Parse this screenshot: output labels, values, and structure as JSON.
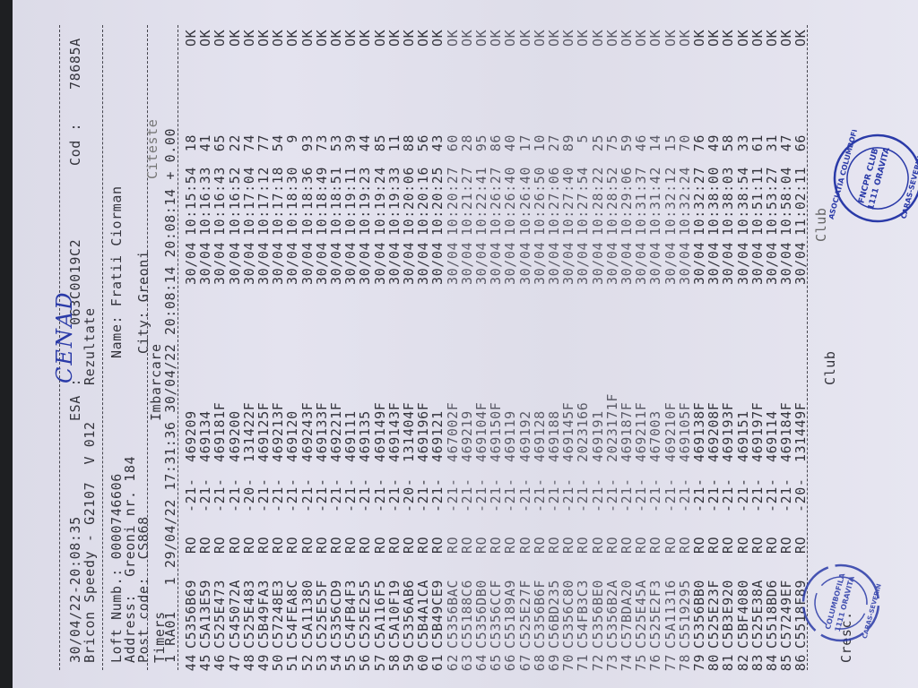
{
  "handwritten_title": "CENAD",
  "header": {
    "datetime": "30/04/22-20:08:35",
    "esa_label": "ESA :",
    "esa_value": "063C0019C2",
    "cod_label": "Cod :",
    "cod_value": "78685A",
    "device": "Bricon Speedy - G2107  V 012",
    "report": "Rezultate"
  },
  "owner": {
    "loft": "Loft Numb.: 0000746606",
    "name": "Name: Fratii Ciorman",
    "address": "Address:  Greoni nr. 184",
    "post_code": "Post code:  CS868",
    "city": "City: Greoni"
  },
  "timers": {
    "label": "Timers",
    "imbarcare_label": "Imbarcare",
    "citeste_label": "Citeste",
    "line": "1 RA01   1 29/04/22 17:31:36 30/04/22 20:08:14 20:08:14 + 0.00"
  },
  "rows": [
    [
      "44",
      "C5356B69",
      "RO",
      "-21-",
      "469209",
      "30/04",
      "10:15:54",
      "18",
      "OK"
    ],
    [
      "45",
      "C5A13E59",
      "RO",
      "-21-",
      "469134",
      "30/04",
      "10:16:33",
      "41",
      "OK"
    ],
    [
      "46",
      "C525E473",
      "RO",
      "-21-",
      "469181F",
      "30/04",
      "10:16:43",
      "65",
      "OK"
    ],
    [
      "47",
      "C545072A",
      "RO",
      "-21-",
      "469200",
      "30/04",
      "10:16:52",
      "22",
      "OK"
    ],
    [
      "48",
      "C525E483",
      "RO",
      "-20-",
      "131422F",
      "30/04",
      "10:17:04",
      "74",
      "OK"
    ],
    [
      "49",
      "C5B49FA3",
      "RO",
      "-21-",
      "469125F",
      "30/04",
      "10:17:12",
      "77",
      "OK"
    ],
    [
      "50",
      "C57248E3",
      "RO",
      "-21-",
      "469213F",
      "30/04",
      "10:17:18",
      "54",
      "OK"
    ],
    [
      "51",
      "C54FEA8C",
      "RO",
      "-21-",
      "469120",
      "30/04",
      "10:18:30",
      "9",
      "OK"
    ],
    [
      "52",
      "C5A11380",
      "RO",
      "-21-",
      "469243F",
      "30/04",
      "10:18:36",
      "93",
      "OK"
    ],
    [
      "53",
      "C525E55F",
      "RO",
      "-21-",
      "469133F",
      "30/04",
      "10:18:49",
      "73",
      "OK"
    ],
    [
      "54",
      "C5356CD9",
      "RO",
      "-21-",
      "469221F",
      "30/04",
      "10:18:51",
      "53",
      "OK"
    ],
    [
      "55",
      "C54FB4F3",
      "RO",
      "-21-",
      "469111",
      "30/04",
      "10:19:11",
      "39",
      "OK"
    ],
    [
      "56",
      "C525E255",
      "RO",
      "-21-",
      "469135",
      "30/04",
      "10:19:23",
      "44",
      "OK"
    ],
    [
      "57",
      "C5A116F5",
      "RO",
      "-21-",
      "469149F",
      "30/04",
      "10:19:24",
      "85",
      "OK"
    ],
    [
      "58",
      "C5A10F19",
      "RO",
      "-21-",
      "469143F",
      "30/04",
      "10:19:33",
      "11",
      "OK"
    ],
    [
      "59",
      "C5356AB6",
      "RO",
      "-20-",
      "131404F",
      "30/04",
      "10:20:06",
      "88",
      "OK"
    ],
    [
      "60",
      "C5B4A1CA",
      "RO",
      "-21-",
      "469196F",
      "30/04",
      "10:20:16",
      "56",
      "OK"
    ],
    [
      "61",
      "C5B49CE9",
      "RO",
      "-21-",
      "469121",
      "30/04",
      "10:20:25",
      "43",
      "OK"
    ],
    [
      "62",
      "C5356BAC",
      "RO",
      "-21-",
      "467002F",
      "30/04",
      "10:20:27",
      "60",
      "OK"
    ],
    [
      "63",
      "C55188C6",
      "RO",
      "-21-",
      "469219",
      "30/04",
      "10:21:27",
      "28",
      "OK"
    ],
    [
      "64",
      "C5356DB0",
      "RO",
      "-21-",
      "469104F",
      "30/04",
      "10:22:41",
      "95",
      "OK"
    ],
    [
      "65",
      "C5356CCF",
      "RO",
      "-21-",
      "469150F",
      "30/04",
      "10:26:27",
      "86",
      "OK"
    ],
    [
      "66",
      "C55189A9",
      "RO",
      "-21-",
      "469119",
      "30/04",
      "10:26:40",
      "40",
      "OK"
    ],
    [
      "67",
      "C525E27F",
      "RO",
      "-21-",
      "469192",
      "30/04",
      "10:26:40",
      "17",
      "OK"
    ],
    [
      "68",
      "C5356B6F",
      "RO",
      "-21-",
      "469128",
      "30/04",
      "10:26:50",
      "10",
      "OK"
    ],
    [
      "69",
      "C56BD235",
      "RO",
      "-21-",
      "469188",
      "30/04",
      "10:27:06",
      "27",
      "OK"
    ],
    [
      "70",
      "C5356C80",
      "RO",
      "-21-",
      "469145F",
      "30/04",
      "10:27:40",
      "89",
      "OK"
    ],
    [
      "71",
      "C54FB3C3",
      "RO",
      "-21-",
      "2023166",
      "30/04",
      "10:27:54",
      "5",
      "OK"
    ],
    [
      "72",
      "C5356BE0",
      "RO",
      "-21-",
      "469191",
      "30/04",
      "10:28:22",
      "25",
      "OK"
    ],
    [
      "73",
      "C5356B2A",
      "RO",
      "-21-",
      "2023171F",
      "30/04",
      "10:28:52",
      "75",
      "OK"
    ],
    [
      "74",
      "C57BDA20",
      "RO",
      "-21-",
      "469187F",
      "30/04",
      "10:29:06",
      "59",
      "OK"
    ],
    [
      "75",
      "C525E45A",
      "RO",
      "-21-",
      "469211F",
      "30/04",
      "10:31:37",
      "46",
      "OK"
    ],
    [
      "76",
      "C525E2F3",
      "RO",
      "-21-",
      "467003",
      "30/04",
      "10:31:42",
      "14",
      "OK"
    ],
    [
      "77",
      "C5A11316",
      "RO",
      "-21-",
      "469210F",
      "30/04",
      "10:32:12",
      "15",
      "OK"
    ],
    [
      "78",
      "C5519295",
      "RO",
      "-21-",
      "469105F",
      "30/04",
      "10:32:24",
      "70",
      "OK"
    ],
    [
      "79",
      "C5356BB0",
      "RO",
      "-21-",
      "469138F",
      "30/04",
      "10:32:27",
      "76",
      "OK"
    ],
    [
      "80",
      "C525E23F",
      "RO",
      "-21-",
      "469208F",
      "30/04",
      "10:38:00",
      "49",
      "OK"
    ],
    [
      "81",
      "C5B3E920",
      "RO",
      "-21-",
      "469193F",
      "30/04",
      "10:38:03",
      "58",
      "OK"
    ],
    [
      "82",
      "C5BF4080",
      "RO",
      "-21-",
      "469151",
      "30/04",
      "10:38:54",
      "33",
      "OK"
    ],
    [
      "83",
      "C525E38A",
      "RO",
      "-21-",
      "469197F",
      "30/04",
      "10:51:11",
      "61",
      "OK"
    ],
    [
      "84",
      "C5518BD6",
      "RO",
      "-21-",
      "469114",
      "30/04",
      "10:53:27",
      "31",
      "OK"
    ],
    [
      "85",
      "C57249EF",
      "RO",
      "-21-",
      "469184F",
      "30/04",
      "10:58:04",
      "47",
      "OK"
    ],
    [
      "86",
      "C5518F89",
      "RO",
      "-20-",
      "131449F",
      "30/04",
      "11:02:11",
      "66",
      "OK"
    ]
  ],
  "footer": {
    "cresc_label": "Cresc.",
    "club_label": "Club",
    "club_label_2": "Club"
  },
  "stamps": [
    {
      "text": "ASOCIATIA COLUMBOFILA FNCPR CLUB 1111 ORAVITA CARAS-SEVERIN",
      "color": "#2a3aa8"
    },
    {
      "text": "ASOCIATIA COLUMBOFILA CLUB 1111 ORAVITA CARAS-SEVERIN",
      "color": "#2a3aa8"
    }
  ],
  "colors": {
    "ink": "#34343c",
    "stamp": "#2a3aa8",
    "paper": "#e2e1ed"
  }
}
